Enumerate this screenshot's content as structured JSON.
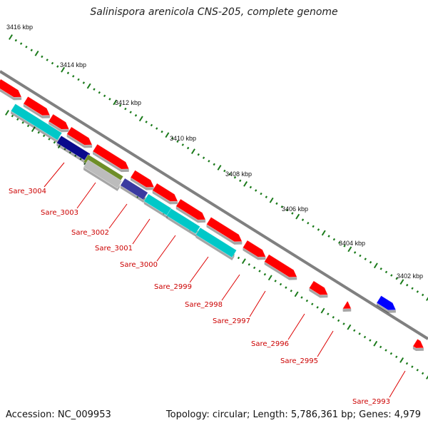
{
  "title": "Salinispora arenicola CNS-205, complete genome",
  "footer": {
    "accession": "Accession: NC_009953",
    "info": "Topology: circular; Length: 5,786,361 bp; Genes: 4,979"
  },
  "scale_labels": [
    "3416 kbp",
    "3414 kbp",
    "3412 kbp",
    "3410 kbp",
    "3408 kbp",
    "3406 kbp",
    "3404 kbp",
    "3402 kbp"
  ],
  "gene_labels": [
    "Sare_3004",
    "Sare_3003",
    "Sare_3002",
    "Sare_3001",
    "Sare_3000",
    "Sare_2999",
    "Sare_2998",
    "Sare_2997",
    "Sare_2996",
    "Sare_2995",
    "Sare_2993"
  ],
  "colors": {
    "backbone": "#808080",
    "tick": "#1a7a1a",
    "scale_text": "#111111",
    "gene_label": "#cc0000",
    "label_line": "#dd0000",
    "forward_gene": "#ff0000",
    "reverse_cyan": "#00c8c8",
    "reverse_navy": "#0a0a8c",
    "reverse_olive": "#6e8e28",
    "reverse_gray": "#bcbcbc",
    "reverse_blue": "#3a3aa0",
    "blue_gene": "#0000ff"
  }
}
